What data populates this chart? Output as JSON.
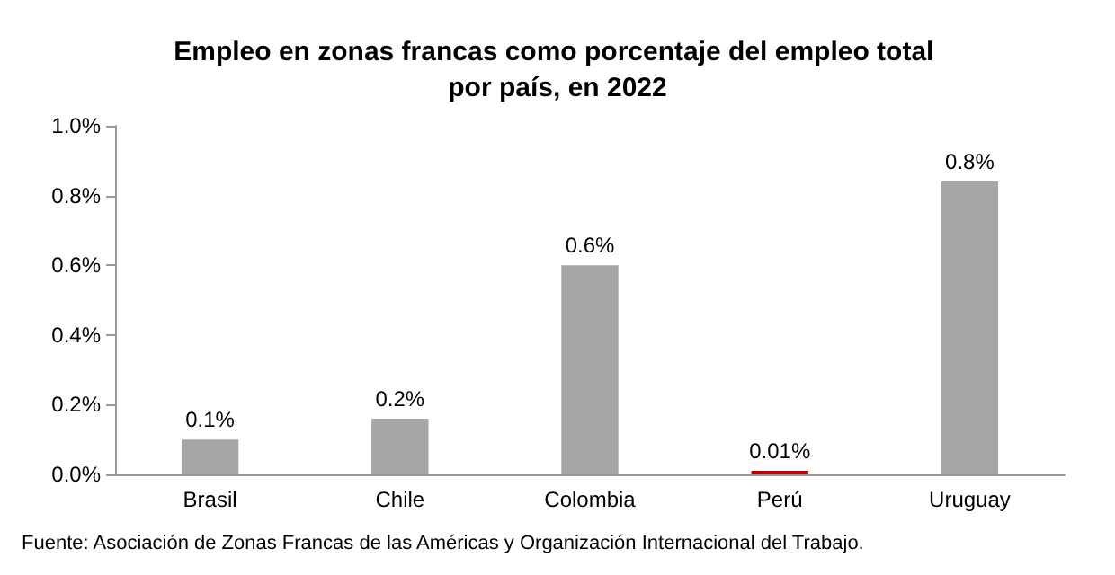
{
  "chart_data": {
    "type": "bar",
    "title": "Empleo en zonas francas como porcentaje del empleo total por país, en 2022",
    "categories": [
      "Brasil",
      "Chile",
      "Colombia",
      "Perú",
      "Uruguay"
    ],
    "values": [
      0.1,
      0.16,
      0.6,
      0.01,
      0.84
    ],
    "colors": [
      "#a6a6a6",
      "#a6a6a6",
      "#a6a6a6",
      "#c00000",
      "#a6a6a6"
    ],
    "value_labels": [
      "0.1%",
      "0.2%",
      "0.6%",
      "0.01%",
      "0.8%"
    ],
    "ylim": [
      0,
      1
    ],
    "yticks": [
      {
        "value": 0,
        "label": "0.0%"
      },
      {
        "value": 0.2,
        "label": "0.2%"
      },
      {
        "value": 0.4,
        "label": "0.4%"
      },
      {
        "value": 0.6,
        "label": "0.6%"
      },
      {
        "value": 0.8,
        "label": "0.8%"
      },
      {
        "value": 1,
        "label": "1.0%"
      }
    ],
    "grid": false,
    "annotations": [
      "Fuente: Asociación de Zonas Francas de las Américas y Organización Internacional del Trabajo."
    ]
  }
}
